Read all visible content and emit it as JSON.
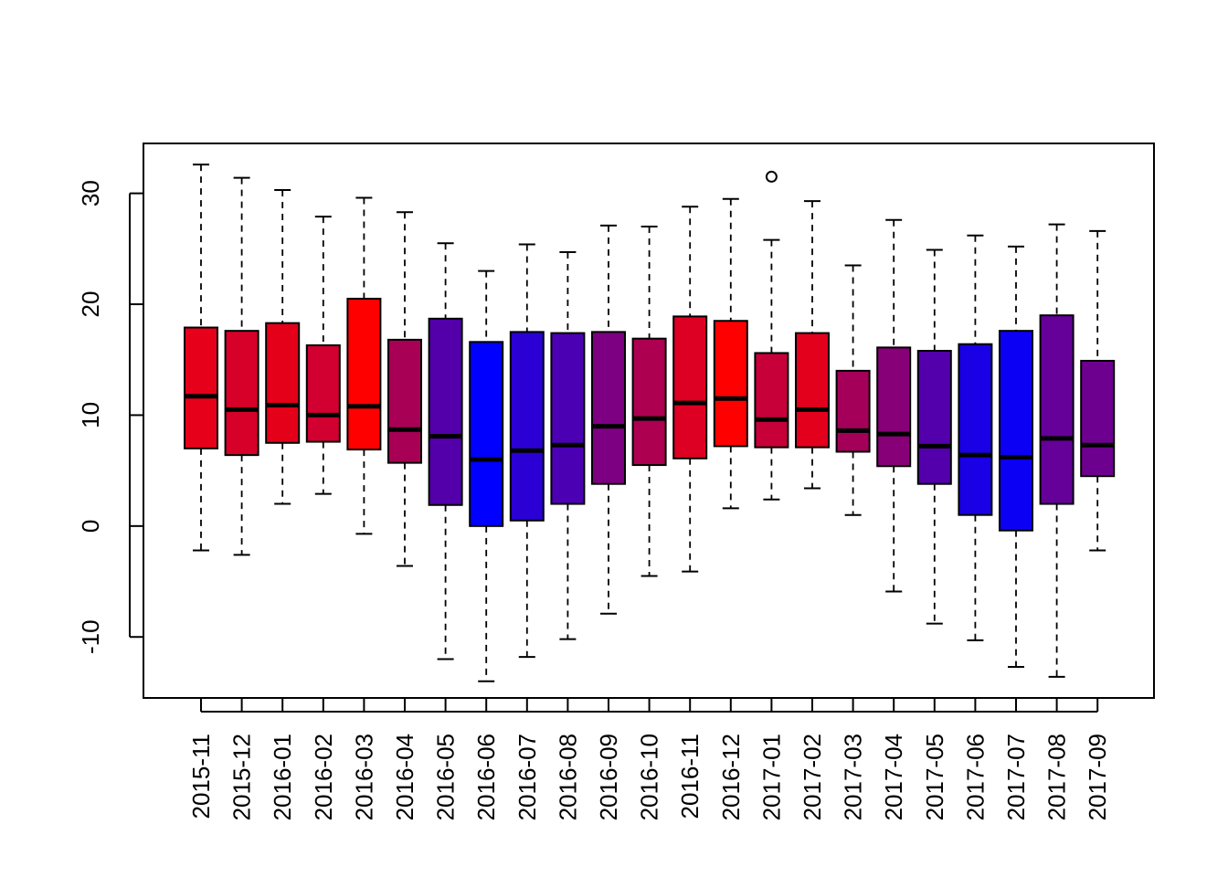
{
  "chart_data": {
    "type": "boxplot",
    "title": "",
    "xlabel": "",
    "ylabel": "",
    "ylim": [
      -15.5,
      34.5
    ],
    "yticks": [
      -10,
      0,
      10,
      20,
      30
    ],
    "ytick_labels": [
      "-10",
      "0",
      "10",
      "20",
      "30"
    ],
    "grid": false,
    "legend": "none",
    "categories": [
      "2015-11",
      "2015-12",
      "2016-01",
      "2016-02",
      "2016-03",
      "2016-04",
      "2016-05",
      "2016-06",
      "2016-07",
      "2016-08",
      "2016-09",
      "2016-10",
      "2016-11",
      "2016-12",
      "2017-01",
      "2017-02",
      "2017-03",
      "2017-04",
      "2017-05",
      "2017-06",
      "2017-07",
      "2017-08",
      "2017-09"
    ],
    "boxes": [
      {
        "min": -2.2,
        "q1": 7.0,
        "median": 11.7,
        "q3": 17.9,
        "max": 32.6,
        "outliers": [],
        "color": "#e6001a"
      },
      {
        "min": -2.6,
        "q1": 6.4,
        "median": 10.5,
        "q3": 17.6,
        "max": 31.4,
        "outliers": [],
        "color": "#d70028"
      },
      {
        "min": 2.0,
        "q1": 7.5,
        "median": 10.9,
        "q3": 18.3,
        "max": 30.3,
        "outliers": [],
        "color": "#e50019"
      },
      {
        "min": 2.9,
        "q1": 7.6,
        "median": 10.0,
        "q3": 16.3,
        "max": 27.9,
        "outliers": [],
        "color": "#d10030"
      },
      {
        "min": -0.7,
        "q1": 6.9,
        "median": 10.8,
        "q3": 20.5,
        "max": 29.6,
        "outliers": [],
        "color": "#ff0000"
      },
      {
        "min": -3.6,
        "q1": 5.7,
        "median": 8.7,
        "q3": 16.8,
        "max": 28.3,
        "outliers": [],
        "color": "#a80055"
      },
      {
        "min": -12.0,
        "q1": 1.9,
        "median": 8.1,
        "q3": 18.7,
        "max": 25.5,
        "outliers": [],
        "color": "#5300ab"
      },
      {
        "min": -14.0,
        "q1": 0.0,
        "median": 6.0,
        "q3": 16.6,
        "max": 23.0,
        "outliers": [],
        "color": "#0000ff"
      },
      {
        "min": -11.8,
        "q1": 0.5,
        "median": 6.8,
        "q3": 17.5,
        "max": 25.4,
        "outliers": [],
        "color": "#2b00d5"
      },
      {
        "min": -10.2,
        "q1": 2.0,
        "median": 7.3,
        "q3": 17.4,
        "max": 24.7,
        "outliers": [],
        "color": "#4c00b3"
      },
      {
        "min": -7.9,
        "q1": 3.8,
        "median": 9.0,
        "q3": 17.5,
        "max": 27.1,
        "outliers": [],
        "color": "#7d0082"
      },
      {
        "min": -4.5,
        "q1": 5.5,
        "median": 9.7,
        "q3": 16.9,
        "max": 27.0,
        "outliers": [],
        "color": "#ad0051"
      },
      {
        "min": -4.1,
        "q1": 6.1,
        "median": 11.1,
        "q3": 18.9,
        "max": 28.8,
        "outliers": [],
        "color": "#dd0022"
      },
      {
        "min": 1.6,
        "q1": 7.2,
        "median": 11.5,
        "q3": 18.5,
        "max": 29.5,
        "outliers": [],
        "color": "#ff0000"
      },
      {
        "min": 2.4,
        "q1": 7.1,
        "median": 9.6,
        "q3": 15.6,
        "max": 25.8,
        "outliers": [
          31.5
        ],
        "color": "#c8003a"
      },
      {
        "min": 3.4,
        "q1": 7.1,
        "median": 10.5,
        "q3": 17.4,
        "max": 29.3,
        "outliers": [],
        "color": "#e2001d"
      },
      {
        "min": 1.0,
        "q1": 6.7,
        "median": 8.6,
        "q3": 14.0,
        "max": 23.5,
        "outliers": [],
        "color": "#a40059"
      },
      {
        "min": -5.9,
        "q1": 5.4,
        "median": 8.3,
        "q3": 16.1,
        "max": 27.6,
        "outliers": [],
        "color": "#880077"
      },
      {
        "min": -8.8,
        "q1": 3.8,
        "median": 7.2,
        "q3": 15.8,
        "max": 24.9,
        "outliers": [],
        "color": "#5300ac"
      },
      {
        "min": -10.3,
        "q1": 1.0,
        "median": 6.4,
        "q3": 16.4,
        "max": 26.2,
        "outliers": [],
        "color": "#1a00e5"
      },
      {
        "min": -12.7,
        "q1": -0.4,
        "median": 6.2,
        "q3": 17.6,
        "max": 25.2,
        "outliers": [],
        "color": "#0b00f4"
      },
      {
        "min": -13.6,
        "q1": 2.0,
        "median": 7.9,
        "q3": 19.0,
        "max": 27.2,
        "outliers": [],
        "color": "#650099"
      },
      {
        "min": -2.2,
        "q1": 4.5,
        "median": 7.3,
        "q3": 14.9,
        "max": 26.6,
        "outliers": [],
        "color": "#6e0090"
      }
    ]
  }
}
